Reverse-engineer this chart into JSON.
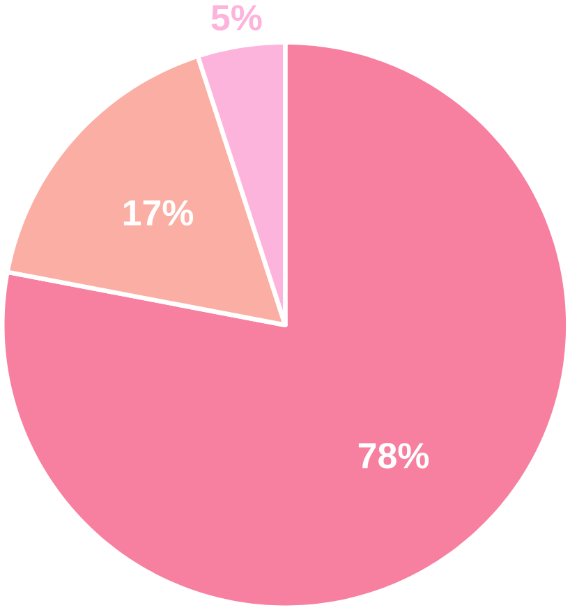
{
  "chart_data": {
    "type": "pie",
    "categories": [
      null,
      null,
      null
    ],
    "values": [
      78,
      17,
      5
    ],
    "colors": [
      "#f77fa0",
      "#fbaea4",
      "#fdb4dc"
    ],
    "value_labels": [
      "78%",
      "17%",
      "5%"
    ]
  }
}
